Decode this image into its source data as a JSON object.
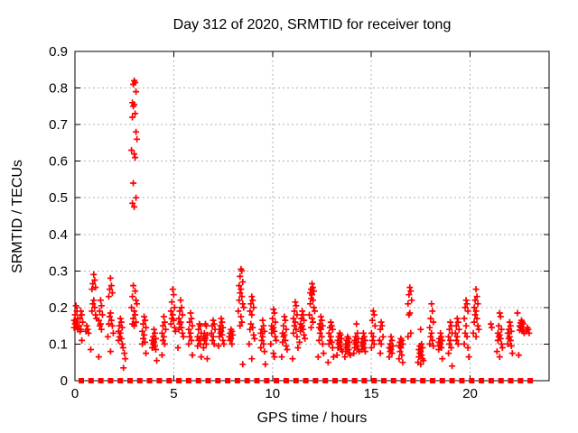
{
  "chart_data": {
    "type": "scatter",
    "title": "Day 312 of 2020, SRMTID for receiver tong",
    "xlabel": "GPS time / hours",
    "ylabel": "SRMTID / TECUs",
    "xlim": [
      0,
      24
    ],
    "ylim": [
      0,
      0.9
    ],
    "xticks": [
      0,
      5,
      10,
      15,
      20
    ],
    "yticks": [
      0,
      0.1,
      0.2,
      0.3,
      0.4,
      0.5,
      0.6,
      0.7,
      0.8,
      0.9
    ],
    "grid": true,
    "legend": "none",
    "marker": "plus",
    "marker_color": "#ff0000",
    "grid_color": "#b0b0b0",
    "border_color": "#000000",
    "clusters": [
      {
        "t": 0.05,
        "v": [
          0.205,
          0.19,
          0.18,
          0.17,
          0.165,
          0.16,
          0.155,
          0.15,
          0.145,
          0.14
        ]
      },
      {
        "t": 0.3,
        "v": [
          0.19,
          0.18,
          0.17,
          0.16,
          0.15,
          0.14,
          0.135,
          0.11
        ]
      },
      {
        "t": 0.6,
        "v": [
          0.15,
          0.14,
          0.135,
          0.13
        ]
      },
      {
        "t": 0.8,
        "v": [
          0.085
        ]
      },
      {
        "t": 0.95,
        "v": [
          0.29,
          0.275,
          0.265,
          0.255,
          0.25,
          0.22,
          0.21,
          0.2,
          0.19,
          0.18,
          0.17
        ]
      },
      {
        "t": 1.3,
        "v": [
          0.22,
          0.205,
          0.19,
          0.18,
          0.165,
          0.155,
          0.15,
          0.14,
          0.065
        ]
      },
      {
        "t": 1.8,
        "v": [
          0.28,
          0.26,
          0.25,
          0.24,
          0.23,
          0.185,
          0.175,
          0.165,
          0.155,
          0.15,
          0.13,
          0.12,
          0.08
        ]
      },
      {
        "t": 2.3,
        "v": [
          0.17,
          0.16,
          0.15,
          0.145,
          0.135,
          0.13,
          0.12,
          0.115,
          0.11,
          0.1,
          0.09
        ]
      },
      {
        "t": 2.5,
        "v": [
          0.075,
          0.06,
          0.035
        ]
      },
      {
        "t": 3.0,
        "v": [
          0.82,
          0.815,
          0.81,
          0.79,
          0.76,
          0.755,
          0.75,
          0.73,
          0.72,
          0.68,
          0.66,
          0.63,
          0.62,
          0.61,
          0.54,
          0.5,
          0.485,
          0.475,
          0.26,
          0.245,
          0.23,
          0.22,
          0.21,
          0.2,
          0.19,
          0.18,
          0.17,
          0.16,
          0.155,
          0.15
        ]
      },
      {
        "t": 3.5,
        "v": [
          0.175,
          0.165,
          0.155,
          0.145,
          0.135,
          0.125,
          0.115,
          0.105,
          0.1,
          0.075
        ]
      },
      {
        "t": 4.0,
        "v": [
          0.14,
          0.13,
          0.12,
          0.115,
          0.11,
          0.105,
          0.1,
          0.095,
          0.09,
          0.085,
          0.055
        ]
      },
      {
        "t": 4.5,
        "v": [
          0.175,
          0.16,
          0.15,
          0.14,
          0.13,
          0.12,
          0.11,
          0.1,
          0.07
        ]
      },
      {
        "t": 4.95,
        "v": [
          0.25,
          0.235,
          0.215,
          0.2,
          0.19,
          0.18,
          0.17,
          0.165,
          0.155,
          0.145,
          0.135
        ]
      },
      {
        "t": 5.35,
        "v": [
          0.22,
          0.2,
          0.19,
          0.18,
          0.17,
          0.16,
          0.155,
          0.145,
          0.14,
          0.13,
          0.12,
          0.09
        ]
      },
      {
        "t": 5.85,
        "v": [
          0.185,
          0.17,
          0.16,
          0.15,
          0.14,
          0.13,
          0.12,
          0.11,
          0.1,
          0.07
        ]
      },
      {
        "t": 6.3,
        "v": [
          0.155,
          0.15,
          0.14,
          0.13,
          0.12,
          0.115,
          0.11,
          0.1,
          0.095,
          0.065
        ]
      },
      {
        "t": 6.6,
        "v": [
          0.155,
          0.15,
          0.13,
          0.125,
          0.12,
          0.115,
          0.11,
          0.1,
          0.09,
          0.06
        ]
      },
      {
        "t": 7.0,
        "v": [
          0.165,
          0.155,
          0.15,
          0.14,
          0.13,
          0.12,
          0.11,
          0.1
        ]
      },
      {
        "t": 7.4,
        "v": [
          0.17,
          0.16,
          0.15,
          0.145,
          0.14,
          0.135,
          0.13,
          0.125,
          0.12,
          0.11,
          0.1,
          0.095
        ]
      },
      {
        "t": 7.9,
        "v": [
          0.14,
          0.135,
          0.13,
          0.125,
          0.12,
          0.115,
          0.11,
          0.1
        ]
      },
      {
        "t": 8.4,
        "v": [
          0.305,
          0.3,
          0.285,
          0.27,
          0.26,
          0.25,
          0.24,
          0.23,
          0.22,
          0.21,
          0.2,
          0.19,
          0.175,
          0.16,
          0.15,
          0.045
        ]
      },
      {
        "t": 8.95,
        "v": [
          0.23,
          0.22,
          0.21,
          0.2,
          0.19,
          0.18,
          0.155,
          0.145,
          0.14,
          0.125,
          0.115,
          0.1,
          0.06
        ]
      },
      {
        "t": 9.5,
        "v": [
          0.165,
          0.15,
          0.14,
          0.135,
          0.13,
          0.12,
          0.11,
          0.1,
          0.09,
          0.08,
          0.045
        ]
      },
      {
        "t": 10.05,
        "v": [
          0.195,
          0.185,
          0.17,
          0.16,
          0.15,
          0.145,
          0.14,
          0.135,
          0.13,
          0.12,
          0.11,
          0.1,
          0.075,
          0.065
        ]
      },
      {
        "t": 10.6,
        "v": [
          0.175,
          0.165,
          0.15,
          0.14,
          0.13,
          0.125,
          0.12,
          0.11,
          0.105,
          0.095,
          0.085,
          0.065
        ]
      },
      {
        "t": 11.15,
        "v": [
          0.215,
          0.205,
          0.19,
          0.18,
          0.17,
          0.16,
          0.15,
          0.14,
          0.13,
          0.12,
          0.09,
          0.06
        ]
      },
      {
        "t": 11.5,
        "v": [
          0.19,
          0.18,
          0.17,
          0.165,
          0.155,
          0.15,
          0.145,
          0.14,
          0.135,
          0.125,
          0.115,
          0.105
        ]
      },
      {
        "t": 12.0,
        "v": [
          0.265,
          0.255,
          0.25,
          0.245,
          0.24,
          0.235,
          0.225,
          0.22,
          0.21,
          0.2,
          0.19,
          0.18,
          0.17,
          0.16,
          0.145
        ]
      },
      {
        "t": 12.45,
        "v": [
          0.175,
          0.165,
          0.155,
          0.15,
          0.145,
          0.14,
          0.13,
          0.12,
          0.11,
          0.1,
          0.075,
          0.065
        ]
      },
      {
        "t": 12.95,
        "v": [
          0.16,
          0.15,
          0.145,
          0.14,
          0.13,
          0.12,
          0.11,
          0.105,
          0.1,
          0.09,
          0.065,
          0.05
        ]
      },
      {
        "t": 13.4,
        "v": [
          0.13,
          0.125,
          0.12,
          0.115,
          0.11,
          0.105,
          0.1,
          0.095,
          0.09,
          0.085,
          0.08,
          0.07
        ]
      },
      {
        "t": 13.8,
        "v": [
          0.12,
          0.115,
          0.11,
          0.105,
          0.1,
          0.095,
          0.09,
          0.085,
          0.08,
          0.075,
          0.07,
          0.065
        ]
      },
      {
        "t": 14.25,
        "v": [
          0.155,
          0.13,
          0.12,
          0.115,
          0.11,
          0.105,
          0.1,
          0.095,
          0.09,
          0.085,
          0.08,
          0.075
        ]
      },
      {
        "t": 14.6,
        "v": [
          0.13,
          0.12,
          0.115,
          0.11,
          0.105,
          0.1,
          0.095,
          0.09,
          0.085,
          0.08
        ]
      },
      {
        "t": 15.1,
        "v": [
          0.19,
          0.18,
          0.165,
          0.15,
          0.13,
          0.12,
          0.11,
          0.1,
          0.09
        ]
      },
      {
        "t": 15.5,
        "v": [
          0.16,
          0.15,
          0.14,
          0.12,
          0.11,
          0.1,
          0.075
        ]
      },
      {
        "t": 16.0,
        "v": [
          0.12,
          0.11,
          0.1,
          0.095,
          0.09,
          0.085,
          0.08,
          0.075,
          0.065
        ]
      },
      {
        "t": 16.5,
        "v": [
          0.115,
          0.11,
          0.105,
          0.1,
          0.095,
          0.09,
          0.08,
          0.07,
          0.06,
          0.05
        ]
      },
      {
        "t": 16.95,
        "v": [
          0.255,
          0.245,
          0.235,
          0.22,
          0.21,
          0.185,
          0.18,
          0.13,
          0.12
        ]
      },
      {
        "t": 17.5,
        "v": [
          0.14,
          0.1,
          0.095,
          0.09,
          0.085,
          0.08,
          0.075,
          0.07,
          0.065,
          0.06,
          0.055,
          0.05,
          0.045
        ]
      },
      {
        "t": 18.05,
        "v": [
          0.21,
          0.19,
          0.17,
          0.16,
          0.145,
          0.13,
          0.12,
          0.11,
          0.1,
          0.095
        ]
      },
      {
        "t": 18.5,
        "v": [
          0.13,
          0.12,
          0.115,
          0.11,
          0.105,
          0.1,
          0.095,
          0.09,
          0.085,
          0.06
        ]
      },
      {
        "t": 19.0,
        "v": [
          0.16,
          0.15,
          0.14,
          0.13,
          0.12,
          0.11,
          0.1,
          0.09,
          0.075,
          0.04
        ]
      },
      {
        "t": 19.35,
        "v": [
          0.17,
          0.16,
          0.15,
          0.14,
          0.13,
          0.12,
          0.11,
          0.1
        ]
      },
      {
        "t": 19.8,
        "v": [
          0.22,
          0.21,
          0.2,
          0.19,
          0.17,
          0.15,
          0.13,
          0.12,
          0.1,
          0.09,
          0.065
        ]
      },
      {
        "t": 20.3,
        "v": [
          0.25,
          0.23,
          0.22,
          0.21,
          0.2,
          0.19,
          0.18,
          0.17,
          0.16,
          0.15,
          0.14,
          0.13,
          0.12
        ]
      },
      {
        "t": 21.05,
        "v": [
          0.155,
          0.145
        ]
      },
      {
        "t": 21.5,
        "v": [
          0.185,
          0.175,
          0.15,
          0.14,
          0.13,
          0.125,
          0.12,
          0.115,
          0.11,
          0.1,
          0.09,
          0.08,
          0.065
        ]
      },
      {
        "t": 22.0,
        "v": [
          0.16,
          0.15,
          0.14,
          0.135,
          0.13,
          0.12,
          0.115,
          0.11,
          0.1,
          0.095,
          0.075
        ]
      },
      {
        "t": 22.4,
        "v": [
          0.185
        ]
      },
      {
        "t": 22.6,
        "v": [
          0.165,
          0.16,
          0.158,
          0.155,
          0.15,
          0.148,
          0.145,
          0.14,
          0.138,
          0.135,
          0.13,
          0.07
        ]
      },
      {
        "t": 22.9,
        "v": [
          0.145,
          0.14,
          0.135,
          0.13
        ]
      }
    ],
    "zero_row": {
      "marker": "square",
      "y": 0,
      "start": 0.32,
      "step": 0.494,
      "count": 47
    }
  }
}
